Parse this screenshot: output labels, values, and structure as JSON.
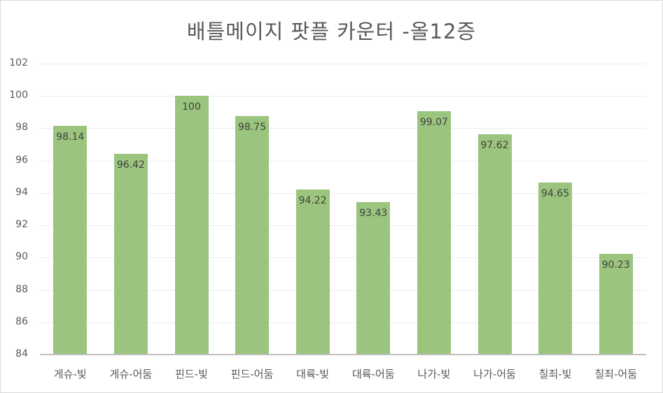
{
  "chart_data": {
    "type": "bar",
    "title": "배틀메이지 팟플 카운터 -올12증",
    "xlabel": "",
    "ylabel": "",
    "ylim": [
      84,
      102
    ],
    "yticks": [
      84,
      86,
      88,
      90,
      92,
      94,
      96,
      98,
      100,
      102
    ],
    "grid": true,
    "legend": null,
    "bar_color": "#9bc57e",
    "categories": [
      "게슈-빛",
      "게슈-어둠",
      "핀드-빛",
      "핀드-어둠",
      "대륙-빛",
      "대륙-어둠",
      "나가-빛",
      "나가-어둠",
      "칠죄-빛",
      "칠죄-어둠"
    ],
    "values": [
      98.14,
      96.42,
      100,
      98.75,
      94.22,
      93.43,
      99.07,
      97.62,
      94.65,
      90.23
    ],
    "value_labels": [
      "98.14",
      "96.42",
      "100",
      "98.75",
      "94.22",
      "93.43",
      "99.07",
      "97.62",
      "94.65",
      "90.23"
    ]
  }
}
